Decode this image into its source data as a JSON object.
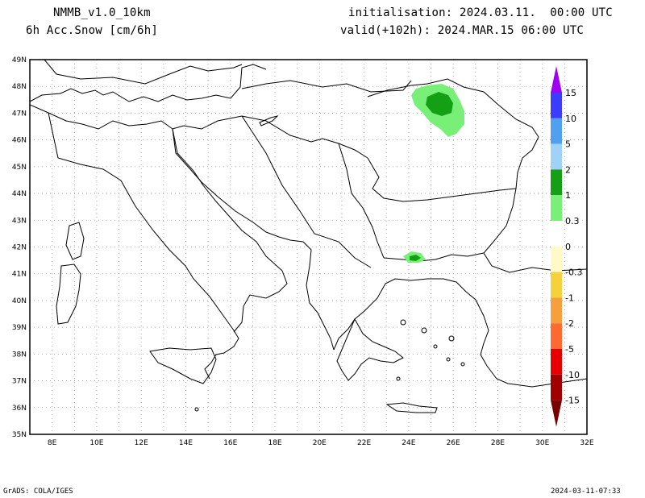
{
  "header": {
    "model": "NMMB_v1.0_10km",
    "field": "6h Acc.Snow [cm/6h]",
    "init": "initialisation: 2024.03.11.  00:00 UTC",
    "valid": "valid(+102h): 2024.MAR.15 06:00 UTC"
  },
  "axes": {
    "lat_labels": [
      "49N",
      "48N",
      "47N",
      "46N",
      "45N",
      "44N",
      "43N",
      "42N",
      "41N",
      "40N",
      "39N",
      "38N",
      "37N",
      "36N",
      "35N"
    ],
    "lon_labels": [
      "8E",
      "10E",
      "12E",
      "14E",
      "16E",
      "18E",
      "20E",
      "22E",
      "24E",
      "26E",
      "28E",
      "30E",
      "32E"
    ]
  },
  "legend": {
    "labels": [
      "15",
      "10",
      "5",
      "2",
      "1",
      "0.3",
      "0",
      "-0.3",
      "-1",
      "-2",
      "-5",
      "-10",
      "-15"
    ],
    "colors": [
      "#a000f0",
      "#3c3cff",
      "#50a0f0",
      "#a0d2f8",
      "#14a014",
      "#78f078",
      "#ffffff",
      "#fffac8",
      "#f5d23c",
      "#f5a03c",
      "#ff6a30",
      "#e60000",
      "#a00000",
      "#780000"
    ]
  },
  "snow_areas": [
    {
      "region": "N Romania / Moldavia",
      "class": "0.3-1 and 1-2 cm"
    },
    {
      "region": "Bulgaria / Greece border",
      "class": "0.3-1 and 1-2 cm"
    }
  ],
  "footer": {
    "credit": "GrADS: COLA/IGES",
    "timestamp": "2024-03-11-07:33"
  }
}
